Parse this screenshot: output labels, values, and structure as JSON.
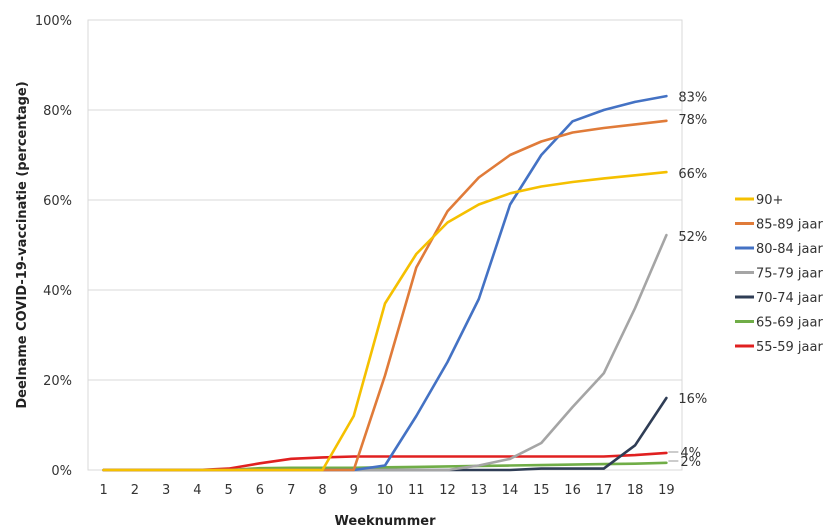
{
  "chart_data": {
    "type": "line",
    "title": "",
    "xlabel": "Weeknummer",
    "ylabel": "Deelname COVID-19-vaccinatie  (percentage)",
    "x": [
      1,
      2,
      3,
      4,
      5,
      6,
      7,
      8,
      9,
      10,
      11,
      12,
      13,
      14,
      15,
      16,
      17,
      18,
      19
    ],
    "xlim": [
      0.5,
      19.5
    ],
    "ylim": [
      0,
      100
    ],
    "y_ticks": [
      "0%",
      "20%",
      "40%",
      "60%",
      "80%",
      "100%"
    ],
    "grid": true,
    "legend_position": "right",
    "series": [
      {
        "name": "90+",
        "color": "#F5C000",
        "values": [
          0,
          0,
          0,
          0,
          0,
          0,
          0,
          0,
          12,
          37,
          48,
          55,
          59,
          61.5,
          63,
          64,
          64.8,
          65.5,
          66.2
        ]
      },
      {
        "name": "85-89 jaar",
        "color": "#E07B39",
        "values": [
          0,
          0,
          0,
          0,
          0,
          0,
          0,
          0,
          0,
          21,
          45,
          57.5,
          65,
          70,
          73,
          75,
          76,
          76.8,
          77.6
        ]
      },
      {
        "name": "80-84 jaar",
        "color": "#4472C4",
        "values": [
          0,
          0,
          0,
          0,
          0,
          0,
          0,
          0,
          0,
          1,
          12,
          24,
          38,
          59,
          70,
          77.5,
          80,
          81.8,
          83.1
        ]
      },
      {
        "name": "75-79 jaar",
        "color": "#A5A5A5",
        "values": [
          0,
          0,
          0,
          0,
          0,
          0,
          0,
          0,
          0,
          0,
          0,
          0,
          1,
          2.5,
          6,
          14,
          21.5,
          36,
          52.2
        ]
      },
      {
        "name": "70-74 jaar",
        "color": "#2F3D55",
        "values": [
          0,
          0,
          0,
          0,
          0,
          0,
          0,
          0,
          0,
          0,
          0,
          0,
          0,
          0,
          0.3,
          0.3,
          0.3,
          5.5,
          16
        ]
      },
      {
        "name": "65-69 jaar",
        "color": "#70AD47",
        "values": [
          0,
          0,
          0,
          0,
          0,
          0.4,
          0.5,
          0.5,
          0.5,
          0.6,
          0.7,
          0.8,
          0.9,
          1,
          1.1,
          1.2,
          1.3,
          1.4,
          1.6
        ]
      },
      {
        "name": "55-59 jaar",
        "color": "#E02020",
        "values": [
          0,
          0,
          0,
          0,
          0.3,
          1.5,
          2.5,
          2.8,
          3,
          3,
          3,
          3,
          3,
          3,
          3,
          3,
          3,
          3.3,
          3.8
        ]
      }
    ],
    "end_labels": [
      {
        "text": "83%",
        "y": 83
      },
      {
        "text": "78%",
        "y": 78
      },
      {
        "text": "66%",
        "y": 66
      },
      {
        "text": "52%",
        "y": 52
      },
      {
        "text": "16%",
        "y": 16
      },
      {
        "text": "4%",
        "y": 4
      },
      {
        "text": "2%",
        "y": 2
      }
    ]
  }
}
